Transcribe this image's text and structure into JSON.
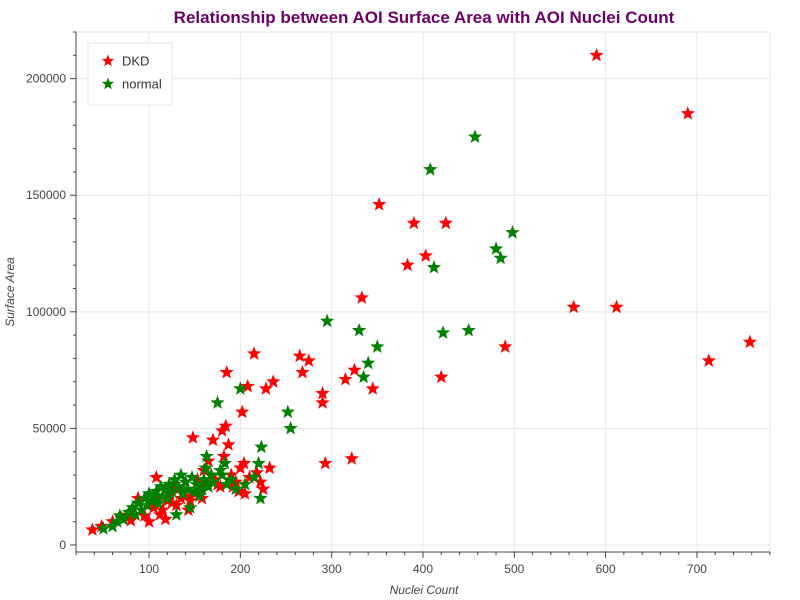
{
  "chart_data": {
    "type": "scatter",
    "title": "Relationship between AOI Surface Area with AOI Nuclei Count",
    "xlabel": "Nuclei Count",
    "ylabel": "Surface Area",
    "xlim": [
      20,
      780
    ],
    "ylim": [
      -3000,
      220000
    ],
    "xticks": [
      100,
      200,
      300,
      400,
      500,
      600,
      700
    ],
    "yticks": [
      0,
      50000,
      100000,
      150000,
      200000
    ],
    "grid": true,
    "legend_position": "top-left",
    "marker": "star",
    "series": [
      {
        "name": "DKD",
        "color": "#ff0000",
        "points": [
          [
            38,
            6500
          ],
          [
            48,
            8000
          ],
          [
            60,
            10000
          ],
          [
            70,
            11500
          ],
          [
            75,
            12500
          ],
          [
            80,
            10500
          ],
          [
            85,
            13000
          ],
          [
            88,
            20000
          ],
          [
            92,
            15000
          ],
          [
            95,
            12500
          ],
          [
            100,
            10000
          ],
          [
            105,
            16000
          ],
          [
            108,
            29000
          ],
          [
            110,
            20000
          ],
          [
            112,
            13000
          ],
          [
            115,
            15000
          ],
          [
            118,
            11000
          ],
          [
            120,
            19000
          ],
          [
            123,
            22000
          ],
          [
            125,
            18000
          ],
          [
            128,
            26000
          ],
          [
            130,
            17000
          ],
          [
            132,
            24000
          ],
          [
            135,
            20000
          ],
          [
            138,
            23000
          ],
          [
            140,
            21000
          ],
          [
            143,
            15000
          ],
          [
            145,
            19000
          ],
          [
            148,
            46000
          ],
          [
            150,
            22000
          ],
          [
            153,
            28000
          ],
          [
            155,
            24000
          ],
          [
            158,
            20000
          ],
          [
            160,
            32000
          ],
          [
            163,
            26000
          ],
          [
            165,
            36000
          ],
          [
            168,
            30000
          ],
          [
            170,
            45000
          ],
          [
            172,
            28000
          ],
          [
            175,
            26000
          ],
          [
            178,
            25000
          ],
          [
            180,
            49000
          ],
          [
            182,
            38000
          ],
          [
            184,
            51000
          ],
          [
            185,
            74000
          ],
          [
            187,
            43000
          ],
          [
            190,
            30000
          ],
          [
            192,
            25000
          ],
          [
            195,
            27000
          ],
          [
            198,
            23000
          ],
          [
            200,
            33000
          ],
          [
            202,
            57000
          ],
          [
            204,
            35000
          ],
          [
            205,
            22000
          ],
          [
            208,
            68000
          ],
          [
            210,
            29000
          ],
          [
            215,
            82000
          ],
          [
            218,
            31000
          ],
          [
            222,
            27000
          ],
          [
            225,
            24000
          ],
          [
            228,
            67000
          ],
          [
            232,
            33000
          ],
          [
            236,
            70000
          ],
          [
            265,
            81000
          ],
          [
            268,
            74000
          ],
          [
            275,
            79000
          ],
          [
            290,
            61000
          ],
          [
            290,
            65000
          ],
          [
            293,
            35000
          ],
          [
            315,
            71000
          ],
          [
            322,
            37000
          ],
          [
            325,
            75000
          ],
          [
            333,
            106000
          ],
          [
            345,
            67000
          ],
          [
            352,
            146000
          ],
          [
            383,
            120000
          ],
          [
            390,
            138000
          ],
          [
            403,
            124000
          ],
          [
            420,
            72000
          ],
          [
            425,
            138000
          ],
          [
            490,
            85000
          ],
          [
            565,
            102000
          ],
          [
            590,
            210000
          ],
          [
            612,
            102000
          ],
          [
            690,
            185000
          ],
          [
            713,
            79000
          ],
          [
            758,
            87000
          ]
        ]
      },
      {
        "name": "normal",
        "color": "#008000",
        "points": [
          [
            50,
            7000
          ],
          [
            60,
            8000
          ],
          [
            65,
            10000
          ],
          [
            68,
            12500
          ],
          [
            72,
            11000
          ],
          [
            78,
            14000
          ],
          [
            82,
            16000
          ],
          [
            85,
            13000
          ],
          [
            88,
            18000
          ],
          [
            92,
            15000
          ],
          [
            95,
            20000
          ],
          [
            98,
            17000
          ],
          [
            100,
            22000
          ],
          [
            103,
            19000
          ],
          [
            105,
            21000
          ],
          [
            108,
            23000
          ],
          [
            110,
            18000
          ],
          [
            113,
            25000
          ],
          [
            115,
            21000
          ],
          [
            118,
            24000
          ],
          [
            120,
            20000
          ],
          [
            122,
            26000
          ],
          [
            125,
            23000
          ],
          [
            128,
            28000
          ],
          [
            130,
            13000
          ],
          [
            132,
            25000
          ],
          [
            135,
            30000
          ],
          [
            137,
            22000
          ],
          [
            140,
            27000
          ],
          [
            142,
            24000
          ],
          [
            145,
            16000
          ],
          [
            147,
            29000
          ],
          [
            150,
            23000
          ],
          [
            152,
            26000
          ],
          [
            155,
            21000
          ],
          [
            158,
            24000
          ],
          [
            160,
            28000
          ],
          [
            162,
            33000
          ],
          [
            163,
            38000
          ],
          [
            165,
            25000
          ],
          [
            168,
            30000
          ],
          [
            170,
            27000
          ],
          [
            175,
            61000
          ],
          [
            178,
            32000
          ],
          [
            180,
            30000
          ],
          [
            183,
            35000
          ],
          [
            185,
            26000
          ],
          [
            190,
            28000
          ],
          [
            195,
            24000
          ],
          [
            200,
            67000
          ],
          [
            205,
            26000
          ],
          [
            215,
            29000
          ],
          [
            220,
            35000
          ],
          [
            222,
            20000
          ],
          [
            223,
            42000
          ],
          [
            252,
            57000
          ],
          [
            255,
            50000
          ],
          [
            295,
            96000
          ],
          [
            330,
            92000
          ],
          [
            335,
            72000
          ],
          [
            340,
            78000
          ],
          [
            350,
            85000
          ],
          [
            408,
            161000
          ],
          [
            412,
            119000
          ],
          [
            422,
            91000
          ],
          [
            450,
            92000
          ],
          [
            457,
            175000
          ],
          [
            480,
            127000
          ],
          [
            485,
            123000
          ],
          [
            498,
            134000
          ]
        ]
      }
    ]
  }
}
